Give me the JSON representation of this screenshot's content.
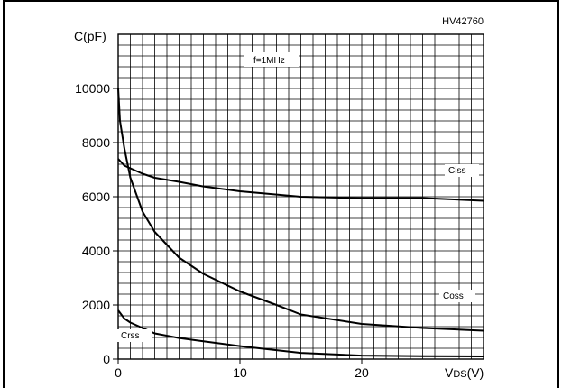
{
  "chart_data": {
    "type": "line",
    "reference_code": "HV42760",
    "ylabel": "C(pF)",
    "xlabel_main": "V",
    "xlabel_sub": "DS",
    "xlabel_unit": "(V)",
    "annotation": "f=1MHz",
    "xlim": [
      0,
      30
    ],
    "ylim": [
      0,
      10000
    ],
    "grid": true,
    "x_ticks": [
      0,
      10,
      20
    ],
    "x_tick_labels": [
      "0",
      "10",
      "20"
    ],
    "y_ticks": [
      0,
      2000,
      4000,
      6000,
      8000,
      10000
    ],
    "y_tick_labels": [
      "0",
      "2000",
      "4000",
      "6000",
      "8000",
      "10000"
    ],
    "series": [
      {
        "name": "Ciss",
        "points": [
          [
            0,
            7400
          ],
          [
            0.5,
            7150
          ],
          [
            1,
            7050
          ],
          [
            2,
            6850
          ],
          [
            3,
            6700
          ],
          [
            5,
            6550
          ],
          [
            7,
            6380
          ],
          [
            10,
            6200
          ],
          [
            15,
            6000
          ],
          [
            20,
            5950
          ],
          [
            25,
            5950
          ],
          [
            30,
            5850
          ]
        ]
      },
      {
        "name": "Coss",
        "points": [
          [
            0,
            10000
          ],
          [
            0.15,
            8800
          ],
          [
            0.5,
            7800
          ],
          [
            1,
            6700
          ],
          [
            2,
            5450
          ],
          [
            3,
            4700
          ],
          [
            5,
            3750
          ],
          [
            7,
            3150
          ],
          [
            10,
            2500
          ],
          [
            13,
            2000
          ],
          [
            15,
            1650
          ],
          [
            20,
            1300
          ],
          [
            25,
            1150
          ],
          [
            30,
            1050
          ]
        ]
      },
      {
        "name": "Crss",
        "points": [
          [
            0,
            1800
          ],
          [
            0.5,
            1500
          ],
          [
            1,
            1350
          ],
          [
            2,
            1150
          ],
          [
            3,
            950
          ],
          [
            5,
            780
          ],
          [
            7,
            660
          ],
          [
            10,
            480
          ],
          [
            15,
            230
          ],
          [
            20,
            130
          ],
          [
            25,
            110
          ],
          [
            30,
            100
          ]
        ]
      }
    ]
  }
}
